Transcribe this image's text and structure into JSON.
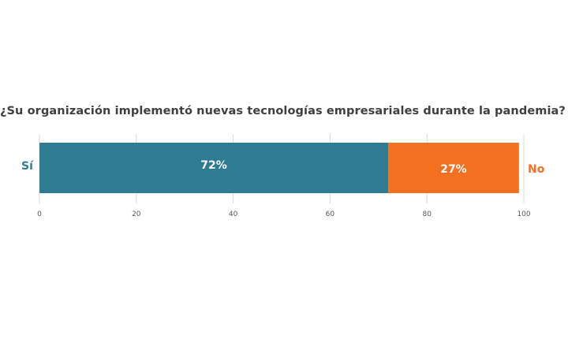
{
  "chart_data": {
    "type": "bar",
    "orientation": "horizontal-stacked",
    "title": "¿Su organización implementó nuevas tecnologías empresariales durante la pandemia?",
    "categories": [
      "Sí",
      "No"
    ],
    "values": [
      72,
      27
    ],
    "value_labels": [
      "72%",
      "27%"
    ],
    "colors": [
      "#2e7b92",
      "#f37021"
    ],
    "xlim": [
      0,
      100
    ],
    "x_ticks": [
      "0",
      "20",
      "40",
      "60",
      "80",
      "100"
    ],
    "grid": true,
    "xlabel": "",
    "ylabel": ""
  }
}
